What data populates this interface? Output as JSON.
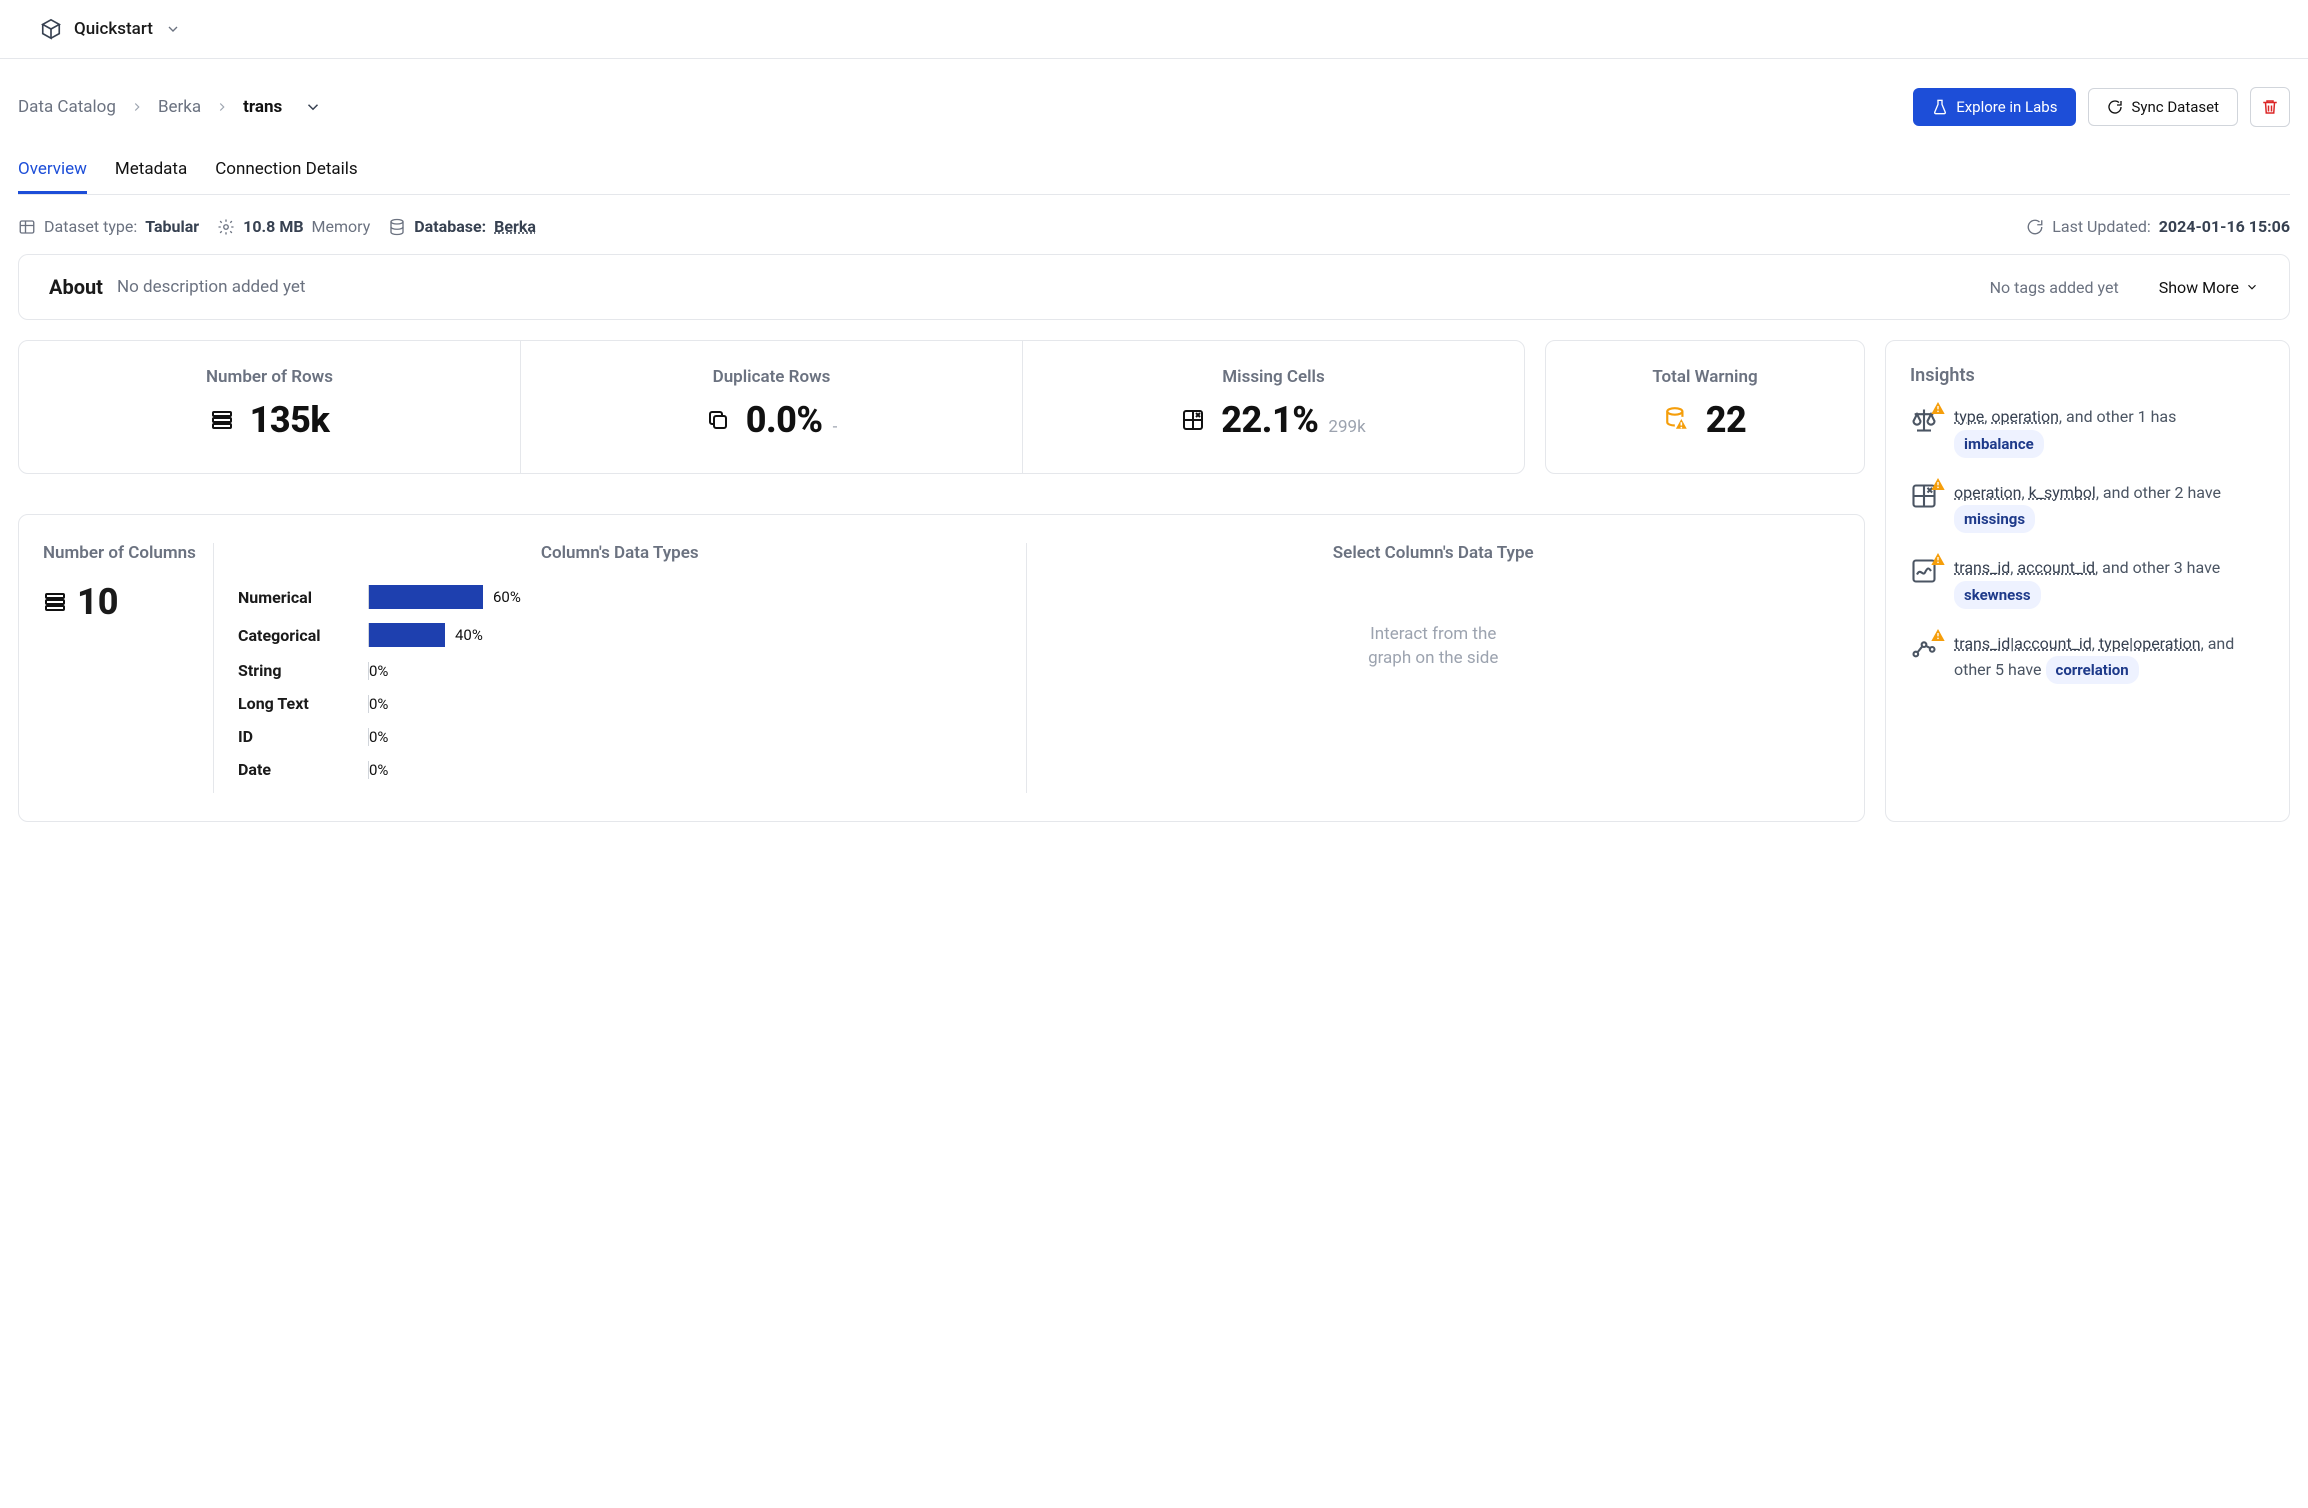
{
  "app": {
    "name": "Quickstart"
  },
  "breadcrumb": {
    "root": "Data Catalog",
    "parent": "Berka",
    "current": "trans"
  },
  "actions": {
    "explore": "Explore in Labs",
    "sync": "Sync Dataset"
  },
  "tabs": {
    "overview": "Overview",
    "metadata": "Metadata",
    "connection": "Connection Details"
  },
  "meta": {
    "type_label": "Dataset type:",
    "type_value": "Tabular",
    "memory_value": "10.8 MB",
    "memory_label": "Memory",
    "database_label": "Database:",
    "database_value": "Berka",
    "updated_label": "Last Updated:",
    "updated_value": "2024-01-16 15:06"
  },
  "about": {
    "title": "About",
    "desc": "No description added yet",
    "tags": "No tags added yet",
    "show_more": "Show More"
  },
  "stats": {
    "rows": {
      "label": "Number of Rows",
      "value": "135k"
    },
    "dup": {
      "label": "Duplicate Rows",
      "value": "0.0%",
      "sub": "-"
    },
    "miss": {
      "label": "Missing Cells",
      "value": "22.1%",
      "sub": "299k"
    },
    "warn": {
      "label": "Total Warning",
      "value": "22"
    }
  },
  "columns": {
    "count_label": "Number of Columns",
    "count": "10",
    "types_title": "Column's Data Types",
    "select_title": "Select Column's Data Type",
    "hint_line1": "Interact from the",
    "hint_line2": "graph on the side",
    "bars": [
      {
        "label": "Numerical",
        "pct": 60,
        "pct_label": "60%"
      },
      {
        "label": "Categorical",
        "pct": 40,
        "pct_label": "40%"
      },
      {
        "label": "String",
        "pct": 0,
        "pct_label": "0%"
      },
      {
        "label": "Long Text",
        "pct": 0,
        "pct_label": "0%"
      },
      {
        "label": "ID",
        "pct": 0,
        "pct_label": "0%"
      },
      {
        "label": "Date",
        "pct": 0,
        "pct_label": "0%"
      }
    ],
    "bar_color": "#1e40af"
  },
  "insights": {
    "title": "Insights",
    "items": [
      {
        "icon": "scale",
        "links": [
          "type",
          "operation"
        ],
        "mid": ",  and other 1  has",
        "tag": "imbalance"
      },
      {
        "icon": "grid",
        "links": [
          "operation",
          "k_symbol"
        ],
        "mid": ",  and other 2  have",
        "tag": "missings"
      },
      {
        "icon": "chart",
        "links": [
          "trans_id",
          "account_id"
        ],
        "mid": ",  and other 3  have",
        "tag": "skewness"
      },
      {
        "icon": "corr",
        "links": [
          "trans_id|account_id",
          "type|operation"
        ],
        "mid": ",  and other 5  have",
        "tag": "correlation"
      }
    ]
  },
  "colors": {
    "primary": "#1d4ed8",
    "bar": "#1e40af",
    "muted": "#6b7280",
    "border": "#e5e7eb",
    "tag_bg": "#eef2ff",
    "tag_fg": "#1e3a8a",
    "danger": "#dc2626",
    "warn": "#f59e0b"
  }
}
